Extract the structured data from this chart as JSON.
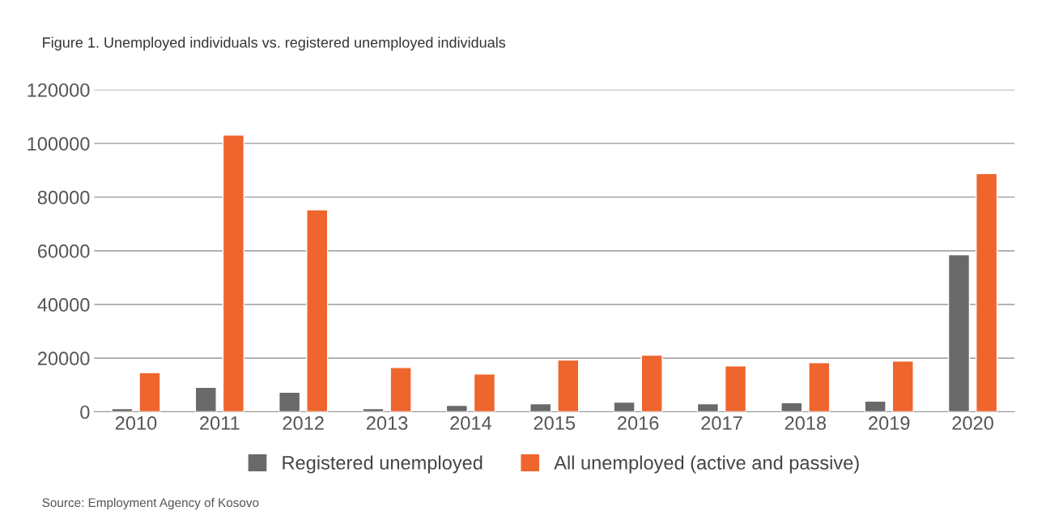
{
  "chart_data": {
    "type": "bar",
    "title": "Figure 1. Unemployed individuals vs. registered unemployed individuals",
    "categories": [
      "2010",
      "2011",
      "2012",
      "2013",
      "2014",
      "2015",
      "2016",
      "2017",
      "2018",
      "2019",
      "2020"
    ],
    "series": [
      {
        "name": "Registered unemployed",
        "color": "#68696b",
        "values": [
          1200,
          9150,
          7300,
          1200,
          2400,
          3000,
          3600,
          3000,
          3400,
          4000,
          58500
        ]
      },
      {
        "name": "All unemployed (active and passive)",
        "color": "#ee652e",
        "values": [
          14600,
          103100,
          75300,
          16500,
          14100,
          19300,
          21100,
          17100,
          18300,
          18900,
          88800
        ]
      }
    ],
    "ylim": [
      0,
      120000
    ],
    "yticks": [
      0,
      20000,
      40000,
      60000,
      80000,
      100000,
      120000
    ],
    "grid": "y",
    "legend": "bottom",
    "annotations": [
      "Source: Employment Agency of Kosovo"
    ]
  }
}
